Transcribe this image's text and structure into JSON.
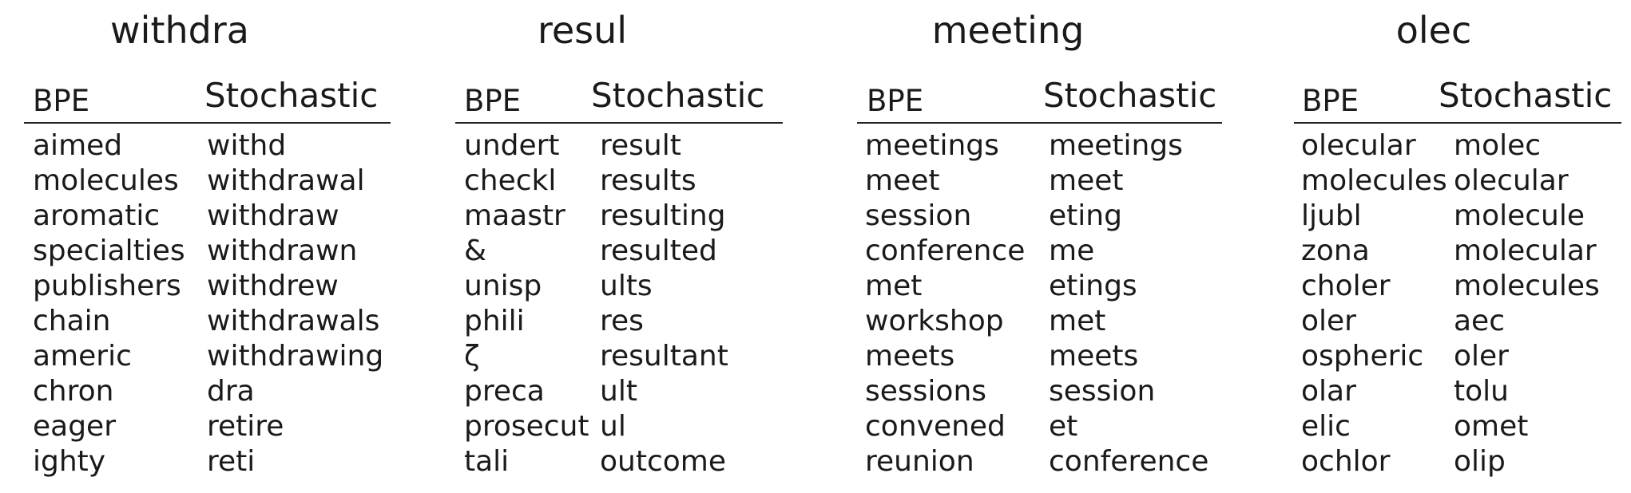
{
  "headers": {
    "bpe": "BPE",
    "stochastic": "Stochastic"
  },
  "panels": [
    {
      "title": "withdra",
      "bpe": [
        "aimed",
        "molecules",
        "aromatic",
        "specialties",
        "publishers",
        "chain",
        "americ",
        "chron",
        "eager",
        "ighty"
      ],
      "stochastic": [
        "withd",
        "withdrawal",
        "withdraw",
        "withdrawn",
        "withdrew",
        "withdrawals",
        "withdrawing",
        "dra",
        "retire",
        "reti"
      ]
    },
    {
      "title": "resul",
      "bpe": [
        "undert",
        "checkl",
        "maastr",
        "&",
        "unisp",
        "phili",
        "ζ",
        "preca",
        "prosecut",
        "tali"
      ],
      "stochastic": [
        "result",
        "results",
        "resulting",
        "resulted",
        "ults",
        "res",
        "resultant",
        "ult",
        "ul",
        "outcome"
      ]
    },
    {
      "title": "meeting",
      "bpe": [
        "meetings",
        "meet",
        "session",
        "conference",
        "met",
        "workshop",
        "meets",
        "sessions",
        "convened",
        "reunion"
      ],
      "stochastic": [
        "meetings",
        "meet",
        "eting",
        "me",
        "etings",
        "met",
        "meets",
        "session",
        "et",
        "conference"
      ]
    },
    {
      "title": "olec",
      "bpe": [
        "olecular",
        "molecules",
        "ljubl",
        "zona",
        "choler",
        "oler",
        "ospheric",
        "olar",
        "elic",
        "ochlor"
      ],
      "stochastic": [
        "molec",
        "olecular",
        "molecule",
        "molecular",
        "molecules",
        "aec",
        "oler",
        "tolu",
        "omet",
        "olip"
      ]
    }
  ]
}
